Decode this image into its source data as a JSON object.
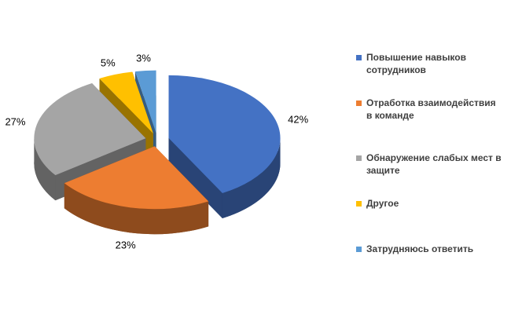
{
  "chart_data": {
    "type": "pie",
    "projection": "3d",
    "exploded": true,
    "title": "",
    "labels": [
      "Повышение навыков сотрудников",
      "Отработка взаимодействия в команде",
      "Обнаружение слабых мест в защите",
      "Другое",
      "Затрудняюсь ответить"
    ],
    "values": [
      42,
      23,
      27,
      5,
      3
    ],
    "value_labels": [
      "42%",
      "23%",
      "27%",
      "5%",
      "3%"
    ],
    "colors": [
      "#4472C4",
      "#ED7D31",
      "#A5A5A5",
      "#FFC000",
      "#5B9BD5"
    ],
    "legend_position": "right",
    "start_angle_deg": -90,
    "direction": "clockwise",
    "background": "#FFFFFF",
    "data_label_color": "#000000",
    "legend_text_color": "#404040"
  }
}
